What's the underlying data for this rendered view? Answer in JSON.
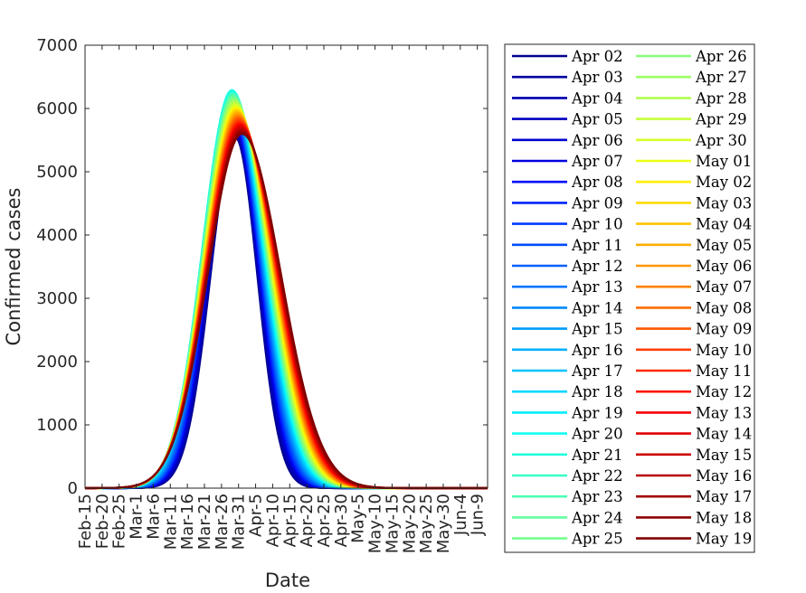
{
  "chart_data": {
    "type": "line",
    "xlabel": "Date",
    "ylabel": "Confirmed cases",
    "ylim": [
      0,
      7000
    ],
    "xlim": [
      "Feb-15",
      "Jun-12"
    ],
    "yticks": [
      0,
      1000,
      2000,
      3000,
      4000,
      5000,
      6000,
      7000
    ],
    "xticks": [
      "Feb-15",
      "Feb-20",
      "Feb-25",
      "Mar-1",
      "Mar-6",
      "Mar-11",
      "Mar-16",
      "Mar-21",
      "Mar-26",
      "Mar-31",
      "Apr-5",
      "Apr-10",
      "Apr-15",
      "Apr-20",
      "Apr-25",
      "Apr-30",
      "May-5",
      "May-10",
      "May-15",
      "May-20",
      "May-25",
      "May-30",
      "Jun-4",
      "Jun-9"
    ],
    "grid": false,
    "legend_placement": "outside-right",
    "legend_columns": 2,
    "colormap": "jet",
    "series_shape": "bell-shaped fitted curves, one per forecast date",
    "first_series": {
      "name": "Apr 02",
      "peak_date": "Mar-30",
      "peak_value": 5550
    },
    "middle_series": {
      "name": "Apr 20",
      "peak_date": "Mar-29",
      "peak_value": 6300
    },
    "last_series": {
      "name": "May 19",
      "peak_date": "Apr-1",
      "peak_value": 5600
    },
    "series": [
      {
        "name": "Apr 02",
        "color": "#00008f"
      },
      {
        "name": "Apr 03",
        "color": "#00009f"
      },
      {
        "name": "Apr 04",
        "color": "#0000af"
      },
      {
        "name": "Apr 05",
        "color": "#0000bf"
      },
      {
        "name": "Apr 06",
        "color": "#0000cf"
      },
      {
        "name": "Apr 07",
        "color": "#0000df"
      },
      {
        "name": "Apr 08",
        "color": "#0010ff"
      },
      {
        "name": "Apr 09",
        "color": "#0024ff"
      },
      {
        "name": "Apr 10",
        "color": "#0038ff"
      },
      {
        "name": "Apr 11",
        "color": "#004cff"
      },
      {
        "name": "Apr 12",
        "color": "#0060ff"
      },
      {
        "name": "Apr 13",
        "color": "#0074ff"
      },
      {
        "name": "Apr 14",
        "color": "#0088ff"
      },
      {
        "name": "Apr 15",
        "color": "#009cff"
      },
      {
        "name": "Apr 16",
        "color": "#00b0ff"
      },
      {
        "name": "Apr 17",
        "color": "#00c4ff"
      },
      {
        "name": "Apr 18",
        "color": "#00d8ff"
      },
      {
        "name": "Apr 19",
        "color": "#00ecff"
      },
      {
        "name": "Apr 20",
        "color": "#10fff0"
      },
      {
        "name": "Apr 21",
        "color": "#24ffdc"
      },
      {
        "name": "Apr 22",
        "color": "#38ffc8"
      },
      {
        "name": "Apr 23",
        "color": "#4cffb4"
      },
      {
        "name": "Apr 24",
        "color": "#60ffa0"
      },
      {
        "name": "Apr 25",
        "color": "#74ff8c"
      },
      {
        "name": "Apr 26",
        "color": "#88ff78"
      },
      {
        "name": "Apr 27",
        "color": "#9cff64"
      },
      {
        "name": "Apr 28",
        "color": "#b0ff50"
      },
      {
        "name": "Apr 29",
        "color": "#c4ff3c"
      },
      {
        "name": "Apr 30",
        "color": "#d8ff28"
      },
      {
        "name": "May 01",
        "color": "#ecff14"
      },
      {
        "name": "May 02",
        "color": "#ffef00"
      },
      {
        "name": "May 03",
        "color": "#ffda00"
      },
      {
        "name": "May 04",
        "color": "#ffc400"
      },
      {
        "name": "May 05",
        "color": "#ffae00"
      },
      {
        "name": "May 06",
        "color": "#ff9800"
      },
      {
        "name": "May 07",
        "color": "#ff8200"
      },
      {
        "name": "May 08",
        "color": "#ff6c00"
      },
      {
        "name": "May 09",
        "color": "#ff5600"
      },
      {
        "name": "May 10",
        "color": "#ff4000"
      },
      {
        "name": "May 11",
        "color": "#ff2a00"
      },
      {
        "name": "May 12",
        "color": "#ff1400"
      },
      {
        "name": "May 13",
        "color": "#f40000"
      },
      {
        "name": "May 14",
        "color": "#e00000"
      },
      {
        "name": "May 15",
        "color": "#cc0000"
      },
      {
        "name": "May 16",
        "color": "#b80000"
      },
      {
        "name": "May 17",
        "color": "#a40000"
      },
      {
        "name": "May 18",
        "color": "#900000"
      },
      {
        "name": "May 19",
        "color": "#800000"
      }
    ]
  }
}
